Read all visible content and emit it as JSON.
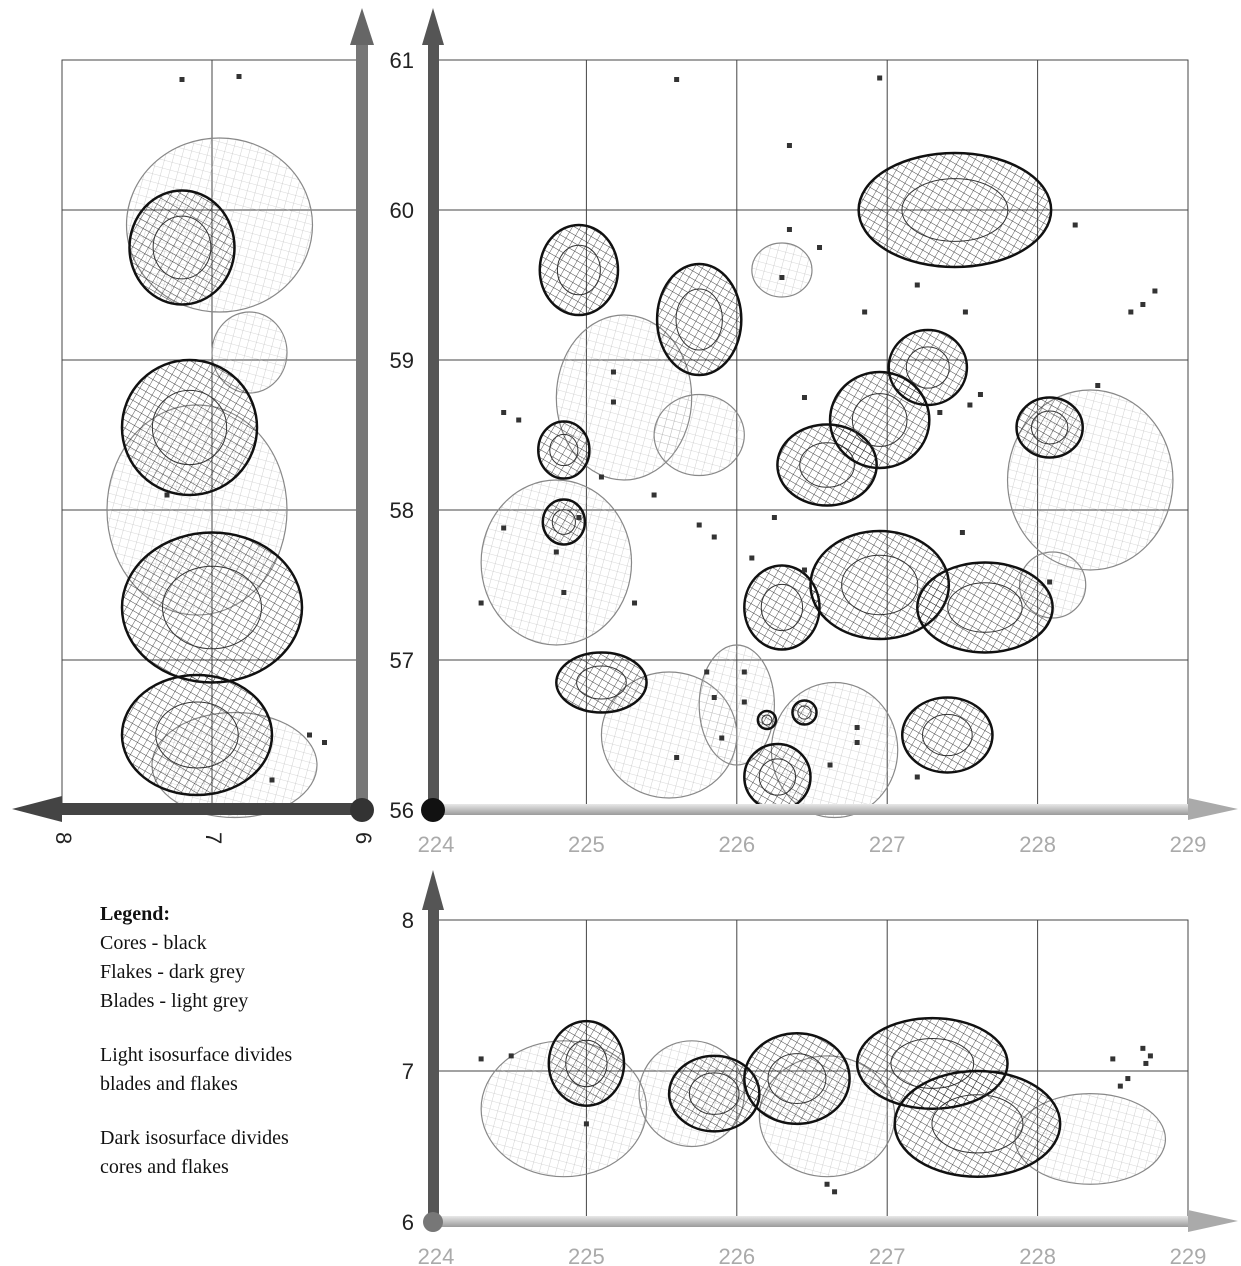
{
  "chart_data": [
    {
      "panel": "main",
      "type": "scatter",
      "title": "",
      "xlabel": "",
      "ylabel": "",
      "xlim": [
        224,
        229
      ],
      "ylim": [
        56,
        61
      ],
      "xticks": [
        "224",
        "225",
        "226",
        "227",
        "228",
        "229"
      ],
      "yticks": [
        "56",
        "57",
        "58",
        "59",
        "60",
        "61"
      ],
      "grid": true,
      "series": [
        {
          "name": "Cores - black",
          "color": "#111111",
          "isosurfaces": [
            {
              "x": 224.95,
              "y": 59.6,
              "rx": 0.26,
              "ry": 0.3
            },
            {
              "x": 225.75,
              "y": 59.27,
              "rx": 0.28,
              "ry": 0.37
            },
            {
              "x": 227.45,
              "y": 60.0,
              "rx": 0.64,
              "ry": 0.38
            },
            {
              "x": 227.27,
              "y": 58.95,
              "rx": 0.26,
              "ry": 0.25
            },
            {
              "x": 226.6,
              "y": 58.3,
              "rx": 0.33,
              "ry": 0.27
            },
            {
              "x": 226.95,
              "y": 58.6,
              "rx": 0.33,
              "ry": 0.32
            },
            {
              "x": 228.08,
              "y": 58.55,
              "rx": 0.22,
              "ry": 0.2
            },
            {
              "x": 224.85,
              "y": 58.4,
              "rx": 0.17,
              "ry": 0.19
            },
            {
              "x": 224.85,
              "y": 57.92,
              "rx": 0.14,
              "ry": 0.15
            },
            {
              "x": 226.3,
              "y": 57.35,
              "rx": 0.25,
              "ry": 0.28
            },
            {
              "x": 226.95,
              "y": 57.5,
              "rx": 0.46,
              "ry": 0.36
            },
            {
              "x": 227.65,
              "y": 57.35,
              "rx": 0.45,
              "ry": 0.3
            },
            {
              "x": 225.1,
              "y": 56.85,
              "rx": 0.3,
              "ry": 0.2
            },
            {
              "x": 227.4,
              "y": 56.5,
              "rx": 0.3,
              "ry": 0.25
            },
            {
              "x": 226.27,
              "y": 56.22,
              "rx": 0.22,
              "ry": 0.22
            },
            {
              "x": 226.45,
              "y": 56.65,
              "rx": 0.08,
              "ry": 0.08
            },
            {
              "x": 226.2,
              "y": 56.6,
              "rx": 0.06,
              "ry": 0.06
            }
          ]
        },
        {
          "name": "Blades - light grey",
          "color": "#c8c8c8",
          "isosurfaces": [
            {
              "x": 225.25,
              "y": 58.75,
              "rx": 0.45,
              "ry": 0.55
            },
            {
              "x": 224.8,
              "y": 57.65,
              "rx": 0.5,
              "ry": 0.55
            },
            {
              "x": 225.75,
              "y": 58.5,
              "rx": 0.3,
              "ry": 0.27
            },
            {
              "x": 226.3,
              "y": 59.6,
              "rx": 0.2,
              "ry": 0.18
            },
            {
              "x": 225.55,
              "y": 56.5,
              "rx": 0.45,
              "ry": 0.42
            },
            {
              "x": 226.0,
              "y": 56.7,
              "rx": 0.25,
              "ry": 0.4
            },
            {
              "x": 226.65,
              "y": 56.4,
              "rx": 0.42,
              "ry": 0.45
            },
            {
              "x": 228.1,
              "y": 57.5,
              "rx": 0.22,
              "ry": 0.22
            },
            {
              "x": 228.35,
              "y": 58.2,
              "rx": 0.55,
              "ry": 0.6
            }
          ]
        }
      ],
      "points": [
        {
          "x": 225.6,
          "y": 60.87
        },
        {
          "x": 226.95,
          "y": 60.88
        },
        {
          "x": 226.35,
          "y": 60.43
        },
        {
          "x": 226.35,
          "y": 59.87
        },
        {
          "x": 226.55,
          "y": 59.75
        },
        {
          "x": 226.3,
          "y": 59.55
        },
        {
          "x": 228.25,
          "y": 59.9
        },
        {
          "x": 228.78,
          "y": 59.46
        },
        {
          "x": 228.7,
          "y": 59.37
        },
        {
          "x": 228.62,
          "y": 59.32
        },
        {
          "x": 226.85,
          "y": 59.32
        },
        {
          "x": 227.2,
          "y": 59.5
        },
        {
          "x": 227.52,
          "y": 59.32
        },
        {
          "x": 225.18,
          "y": 58.92
        },
        {
          "x": 225.18,
          "y": 58.72
        },
        {
          "x": 224.45,
          "y": 58.65
        },
        {
          "x": 224.55,
          "y": 58.6
        },
        {
          "x": 225.1,
          "y": 58.22
        },
        {
          "x": 224.45,
          "y": 57.88
        },
        {
          "x": 224.95,
          "y": 57.95
        },
        {
          "x": 224.8,
          "y": 57.72
        },
        {
          "x": 225.32,
          "y": 57.38
        },
        {
          "x": 225.45,
          "y": 58.1
        },
        {
          "x": 225.75,
          "y": 57.9
        },
        {
          "x": 225.85,
          "y": 57.82
        },
        {
          "x": 226.25,
          "y": 57.95
        },
        {
          "x": 226.1,
          "y": 57.68
        },
        {
          "x": 226.45,
          "y": 57.6
        },
        {
          "x": 227.5,
          "y": 57.85
        },
        {
          "x": 228.08,
          "y": 57.52
        },
        {
          "x": 226.45,
          "y": 58.75
        },
        {
          "x": 227.35,
          "y": 58.65
        },
        {
          "x": 227.55,
          "y": 58.7
        },
        {
          "x": 227.62,
          "y": 58.77
        },
        {
          "x": 228.4,
          "y": 58.83
        },
        {
          "x": 225.0,
          "y": 56.0
        },
        {
          "x": 226.05,
          "y": 56.92
        },
        {
          "x": 225.8,
          "y": 56.92
        },
        {
          "x": 225.85,
          "y": 56.75
        },
        {
          "x": 226.05,
          "y": 56.72
        },
        {
          "x": 226.8,
          "y": 56.55
        },
        {
          "x": 226.8,
          "y": 56.45
        },
        {
          "x": 227.2,
          "y": 56.22
        },
        {
          "x": 226.62,
          "y": 56.3
        },
        {
          "x": 225.9,
          "y": 56.48
        },
        {
          "x": 225.6,
          "y": 56.35
        },
        {
          "x": 224.85,
          "y": 57.45
        },
        {
          "x": 224.3,
          "y": 57.38
        }
      ]
    },
    {
      "panel": "left",
      "type": "scatter",
      "title": "",
      "xlabel": "",
      "ylabel": "",
      "xlim": [
        8,
        6
      ],
      "ylim": [
        56,
        61
      ],
      "xticks": [
        "8",
        "7",
        "6"
      ],
      "grid": true,
      "series": [
        {
          "name": "Cores - black",
          "color": "#111111",
          "isosurfaces": [
            {
              "x": 7.2,
              "y": 59.75,
              "rx": 0.35,
              "ry": 0.38
            },
            {
              "x": 7.15,
              "y": 58.55,
              "rx": 0.45,
              "ry": 0.45
            },
            {
              "x": 7.0,
              "y": 57.35,
              "rx": 0.6,
              "ry": 0.5
            },
            {
              "x": 7.1,
              "y": 56.5,
              "rx": 0.5,
              "ry": 0.4
            }
          ]
        },
        {
          "name": "Blades - light grey",
          "color": "#c8c8c8",
          "isosurfaces": [
            {
              "x": 6.95,
              "y": 59.9,
              "rx": 0.62,
              "ry": 0.58
            },
            {
              "x": 6.75,
              "y": 59.05,
              "rx": 0.25,
              "ry": 0.27
            },
            {
              "x": 7.1,
              "y": 58.0,
              "rx": 0.6,
              "ry": 0.7
            },
            {
              "x": 6.85,
              "y": 56.3,
              "rx": 0.55,
              "ry": 0.35
            }
          ]
        }
      ],
      "points": [
        {
          "x": 7.2,
          "y": 60.87
        },
        {
          "x": 6.82,
          "y": 60.89
        },
        {
          "x": 7.3,
          "y": 58.1
        },
        {
          "x": 6.35,
          "y": 56.5
        },
        {
          "x": 6.25,
          "y": 56.45
        },
        {
          "x": 6.6,
          "y": 56.2
        }
      ]
    },
    {
      "panel": "bottom",
      "type": "scatter",
      "title": "",
      "xlabel": "",
      "ylabel": "",
      "xlim": [
        224,
        229
      ],
      "ylim": [
        6,
        8
      ],
      "xticks": [
        "224",
        "225",
        "226",
        "227",
        "228",
        "229"
      ],
      "yticks": [
        "6",
        "7",
        "8"
      ],
      "grid": true,
      "series": [
        {
          "name": "Cores - black",
          "color": "#111111",
          "isosurfaces": [
            {
              "x": 225.0,
              "y": 7.05,
              "rx": 0.25,
              "ry": 0.28
            },
            {
              "x": 225.85,
              "y": 6.85,
              "rx": 0.3,
              "ry": 0.25
            },
            {
              "x": 226.4,
              "y": 6.95,
              "rx": 0.35,
              "ry": 0.3
            },
            {
              "x": 227.3,
              "y": 7.05,
              "rx": 0.5,
              "ry": 0.3
            },
            {
              "x": 227.6,
              "y": 6.65,
              "rx": 0.55,
              "ry": 0.35
            }
          ]
        },
        {
          "name": "Blades - light grey",
          "color": "#c8c8c8",
          "isosurfaces": [
            {
              "x": 224.85,
              "y": 6.75,
              "rx": 0.55,
              "ry": 0.45
            },
            {
              "x": 225.7,
              "y": 6.85,
              "rx": 0.35,
              "ry": 0.35
            },
            {
              "x": 226.6,
              "y": 6.7,
              "rx": 0.45,
              "ry": 0.4
            },
            {
              "x": 228.35,
              "y": 6.55,
              "rx": 0.5,
              "ry": 0.3
            }
          ]
        }
      ],
      "points": [
        {
          "x": 224.3,
          "y": 7.08
        },
        {
          "x": 224.5,
          "y": 7.1
        },
        {
          "x": 225.0,
          "y": 6.65
        },
        {
          "x": 228.5,
          "y": 7.08
        },
        {
          "x": 228.7,
          "y": 7.15
        },
        {
          "x": 228.75,
          "y": 7.1
        },
        {
          "x": 228.72,
          "y": 7.05
        },
        {
          "x": 228.6,
          "y": 6.95
        },
        {
          "x": 228.55,
          "y": 6.9
        },
        {
          "x": 226.6,
          "y": 6.25
        },
        {
          "x": 226.65,
          "y": 6.2
        },
        {
          "x": 224.2,
          "y": 6.02
        }
      ]
    }
  ],
  "legend": {
    "title": "Legend:",
    "items": [
      "Cores - black",
      "Flakes - dark grey",
      "Blades - light grey"
    ],
    "note1_line1": "Light isosurface divides",
    "note1_line2": "blades and flakes",
    "note2_line1": "Dark isosurface divides",
    "note2_line2": "cores and flakes"
  }
}
